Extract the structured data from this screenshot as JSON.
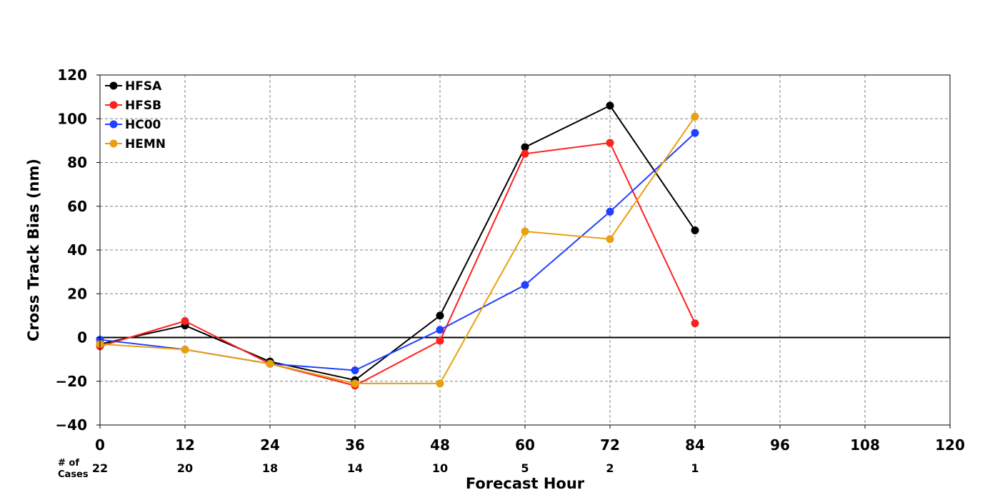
{
  "chart_data": {
    "type": "line",
    "title": "",
    "xlabel": "Forecast Hour",
    "ylabel": "Cross Track Bias (nm)",
    "xlim": [
      0,
      120
    ],
    "ylim": [
      -40,
      120
    ],
    "xticks": [
      0,
      12,
      24,
      36,
      48,
      60,
      72,
      84,
      96,
      108,
      120
    ],
    "yticks": [
      -40,
      -20,
      0,
      20,
      40,
      60,
      80,
      100,
      120
    ],
    "grid": true,
    "legend_position": "top-left",
    "x": [
      0,
      12,
      24,
      36,
      48,
      60,
      72,
      84
    ],
    "series": [
      {
        "name": "HFSA",
        "color": "#000000",
        "values": [
          -3,
          5.5,
          -11,
          -19.5,
          10,
          87,
          106,
          49
        ]
      },
      {
        "name": "HFSB",
        "color": "#ff2020",
        "values": [
          -4,
          7.5,
          -12,
          -22,
          -1.5,
          84,
          89,
          6.5
        ]
      },
      {
        "name": "HC00",
        "color": "#2040ff",
        "values": [
          -1,
          -5.5,
          -12,
          -15,
          3.5,
          24,
          57.5,
          93.5
        ]
      },
      {
        "name": "HEMN",
        "color": "#e8a010",
        "values": [
          -3,
          -5.5,
          -12,
          -21,
          -21,
          48.5,
          45,
          101
        ]
      }
    ],
    "cases_header": "# of\nCases",
    "cases_header_lines": [
      "# of",
      "Cases"
    ],
    "cases": [
      {
        "x": 0,
        "count": "22"
      },
      {
        "x": 12,
        "count": "20"
      },
      {
        "x": 24,
        "count": "18"
      },
      {
        "x": 36,
        "count": "14"
      },
      {
        "x": 48,
        "count": "10"
      },
      {
        "x": 60,
        "count": "5"
      },
      {
        "x": 72,
        "count": "2"
      },
      {
        "x": 84,
        "count": "1"
      }
    ]
  }
}
